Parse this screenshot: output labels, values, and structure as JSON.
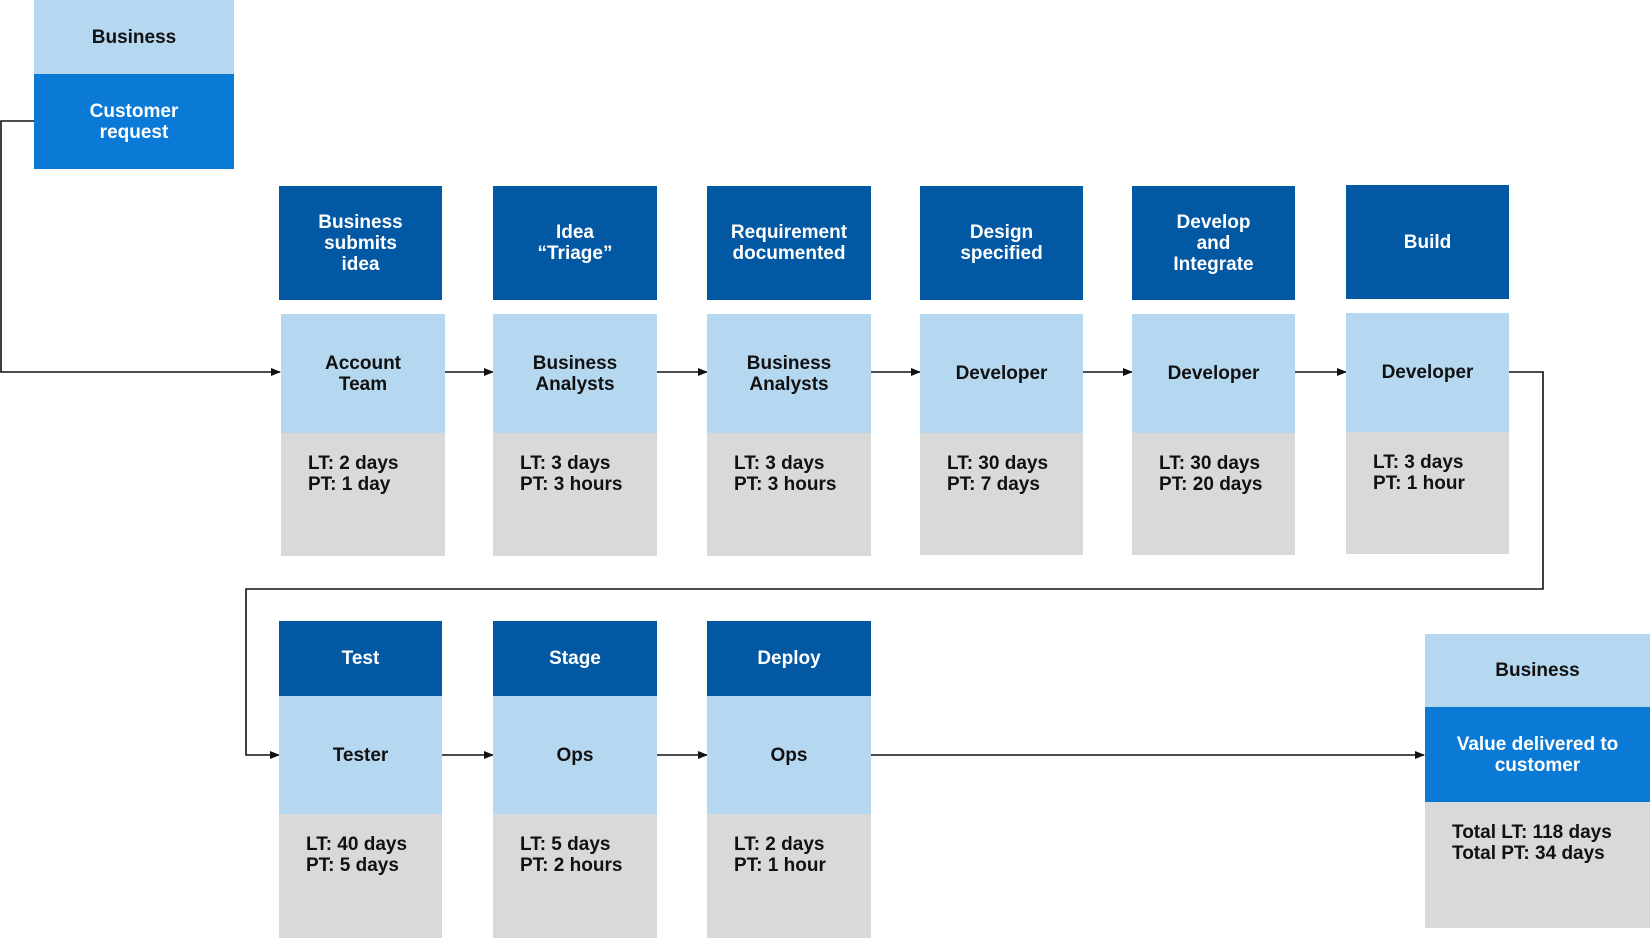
{
  "start": {
    "actor": "Business",
    "event": "Customer\nrequest"
  },
  "steps": [
    {
      "title": "Business\nsubmits\nidea",
      "role": "Account\nTeam",
      "lt": "LT: 2 days",
      "pt": "PT: 1 day"
    },
    {
      "title": "Idea\n“Triage”",
      "role": "Business\nAnalysts",
      "lt": "LT: 3 days",
      "pt": "PT: 3 hours"
    },
    {
      "title": "Requirement\ndocumented",
      "role": "Business\nAnalysts",
      "lt": "LT: 3 days",
      "pt": "PT: 3 hours"
    },
    {
      "title": "Design\nspecified",
      "role": "Developer",
      "lt": "LT: 30 days",
      "pt": "PT: 7 days"
    },
    {
      "title": "Develop\nand\nIntegrate",
      "role": "Developer",
      "lt": "LT: 30 days",
      "pt": "PT: 20 days"
    },
    {
      "title": "Build",
      "role": "Developer",
      "lt": "LT: 3 days",
      "pt": "PT: 1 hour"
    },
    {
      "title": "Test",
      "role": "Tester",
      "lt": "LT: 40 days",
      "pt": "PT: 5 days"
    },
    {
      "title": "Stage",
      "role": "Ops",
      "lt": "LT: 5 days",
      "pt": "PT: 2 hours"
    },
    {
      "title": "Deploy",
      "role": "Ops",
      "lt": "LT: 2 days",
      "pt": "PT: 1 hour"
    }
  ],
  "end": {
    "actor": "Business",
    "event": "Value delivered to\ncustomer",
    "total_lt": "Total LT: 118 days",
    "total_pt": "Total PT: 34 days"
  },
  "colors": {
    "dark_blue": "#0358a4",
    "mid_blue": "#0a7ad6",
    "light_blue": "#b5d7f0",
    "grey": "#d9d9d9",
    "connector": "#111111"
  }
}
